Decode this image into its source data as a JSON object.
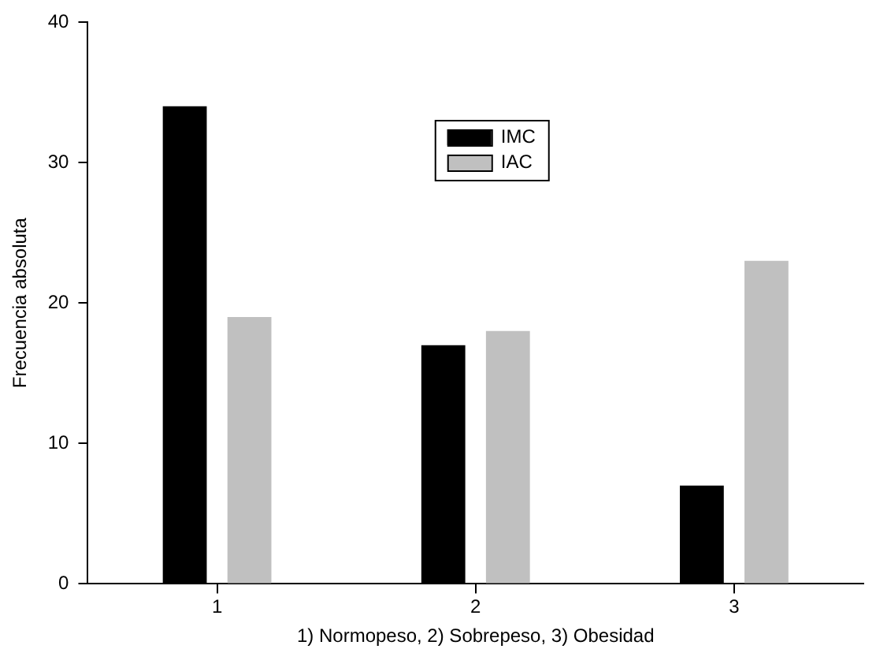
{
  "chart_data": {
    "type": "bar",
    "xlabel": "1) Normopeso, 2) Sobrepeso, 3) Obesidad",
    "ylabel": "Frecuencia absoluta",
    "categories": [
      "1",
      "2",
      "3"
    ],
    "series": [
      {
        "name": "IMC",
        "color": "#000000",
        "values": [
          34,
          17,
          7
        ]
      },
      {
        "name": "IAC",
        "color": "#c0c0c0",
        "values": [
          19,
          18,
          23
        ]
      }
    ],
    "ylim": [
      0,
      40
    ],
    "yticks": [
      0,
      10,
      20,
      30,
      40
    ],
    "grid": false,
    "legend": "top"
  }
}
